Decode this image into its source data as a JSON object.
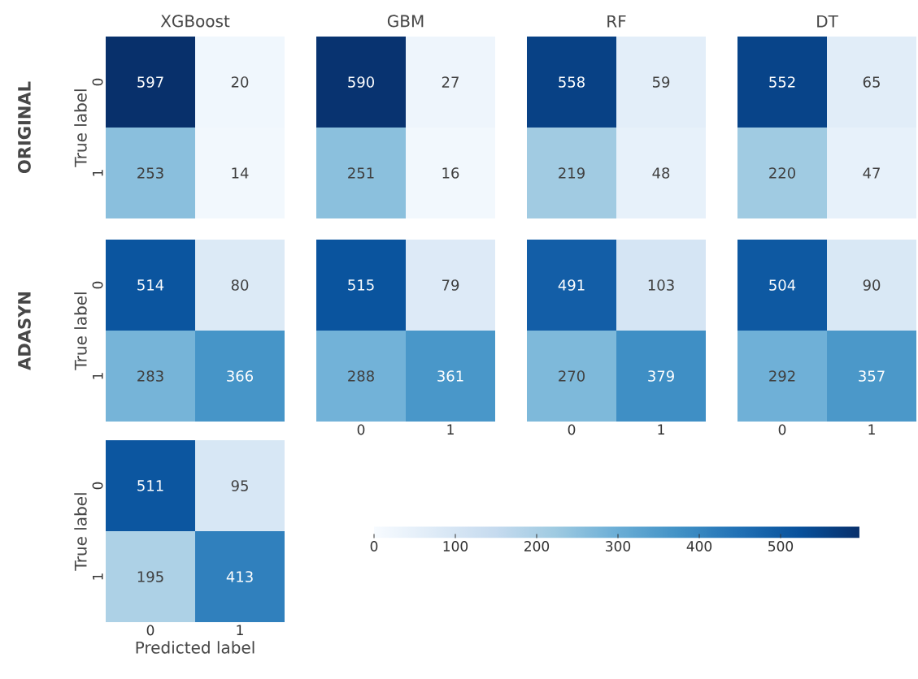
{
  "chart_data": [
    {
      "type": "heatmap",
      "title": "XGBoost",
      "ylabel": "True label",
      "annotations": [
        "ORIGINAL"
      ],
      "categories": [
        "0",
        "1"
      ],
      "y_categories": [
        "0",
        "1"
      ],
      "cells": [
        [
          597,
          20
        ],
        [
          253,
          14
        ]
      ],
      "data_labels": true,
      "tick_labels": "y"
    },
    {
      "type": "heatmap",
      "title": "GBM",
      "categories": [
        "0",
        "1"
      ],
      "y_categories": [
        "0",
        "1"
      ],
      "cells": [
        [
          590,
          27
        ],
        [
          251,
          16
        ]
      ],
      "data_labels": true,
      "tick_labels": false
    },
    {
      "type": "heatmap",
      "title": "RF",
      "categories": [
        "0",
        "1"
      ],
      "y_categories": [
        "0",
        "1"
      ],
      "cells": [
        [
          558,
          59
        ],
        [
          219,
          48
        ]
      ],
      "data_labels": true,
      "tick_labels": false
    },
    {
      "type": "heatmap",
      "title": "DT",
      "categories": [
        "0",
        "1"
      ],
      "y_categories": [
        "0",
        "1"
      ],
      "cells": [
        [
          552,
          65
        ],
        [
          220,
          47
        ]
      ],
      "data_labels": true,
      "tick_labels": false
    },
    {
      "type": "heatmap",
      "ylabel": "True label",
      "annotations": [
        "ADASYN"
      ],
      "categories": [
        "0",
        "1"
      ],
      "y_categories": [
        "0",
        "1"
      ],
      "cells": [
        [
          514,
          80
        ],
        [
          283,
          366
        ]
      ],
      "data_labels": true,
      "tick_labels": "y"
    },
    {
      "type": "heatmap",
      "categories": [
        "0",
        "1"
      ],
      "y_categories": [
        "0",
        "1"
      ],
      "cells": [
        [
          515,
          79
        ],
        [
          288,
          361
        ]
      ],
      "data_labels": true,
      "tick_labels": "x"
    },
    {
      "type": "heatmap",
      "categories": [
        "0",
        "1"
      ],
      "y_categories": [
        "0",
        "1"
      ],
      "cells": [
        [
          491,
          103
        ],
        [
          270,
          379
        ]
      ],
      "data_labels": true,
      "tick_labels": "x"
    },
    {
      "type": "heatmap",
      "categories": [
        "0",
        "1"
      ],
      "y_categories": [
        "0",
        "1"
      ],
      "cells": [
        [
          504,
          90
        ],
        [
          292,
          357
        ]
      ],
      "data_labels": true,
      "tick_labels": "x"
    },
    {
      "type": "heatmap",
      "xlabel": "Predicted label",
      "ylabel": "True label",
      "categories": [
        "0",
        "1"
      ],
      "y_categories": [
        "0",
        "1"
      ],
      "cells": [
        [
          511,
          95
        ],
        [
          195,
          413
        ]
      ],
      "clim": [
        0,
        597
      ],
      "cticks": [
        0,
        100,
        200,
        300,
        400,
        500
      ],
      "data_labels": true
    }
  ]
}
